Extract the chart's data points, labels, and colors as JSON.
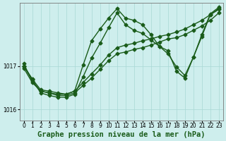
{
  "xlabel": "Graphe pression niveau de la mer (hPa)",
  "ylim": [
    1015.75,
    1018.45
  ],
  "xlim": [
    -0.5,
    23.5
  ],
  "yticks": [
    1016,
    1017
  ],
  "xticks": [
    0,
    1,
    2,
    3,
    4,
    5,
    6,
    7,
    8,
    9,
    10,
    11,
    12,
    13,
    14,
    15,
    16,
    17,
    18,
    19,
    20,
    21,
    22,
    23
  ],
  "xtick_labels": [
    "0",
    "1",
    "2",
    "3",
    "4",
    "5",
    "6",
    "7",
    "8",
    "9",
    "10",
    "11",
    "12",
    "13",
    "14",
    "15",
    "16",
    "17",
    "18",
    "19",
    "20",
    "21",
    "22",
    "23"
  ],
  "bg_color": "#ceeeed",
  "grid_color": "#a8d8d4",
  "line_color": "#1a5c1a",
  "series": [
    [
      1017.0,
      1016.7,
      null,
      null,
      null,
      null,
      null,
      null,
      null,
      null,
      null,
      null,
      null,
      null,
      null,
      null,
      null,
      null,
      null,
      null,
      null,
      null,
      null,
      null
    ],
    [
      1016.95,
      1016.62,
      1016.42,
      1016.38,
      1016.32,
      1016.32,
      1016.38,
      1016.55,
      1016.72,
      1016.92,
      1017.12,
      1017.28,
      1017.32,
      1017.38,
      1017.42,
      1017.48,
      1017.55,
      1017.62,
      1017.65,
      1017.72,
      1017.82,
      1017.92,
      1018.05,
      1018.22
    ],
    [
      1017.05,
      1016.65,
      1016.42,
      1016.38,
      1016.35,
      1016.35,
      1016.42,
      1016.62,
      1016.82,
      1017.02,
      1017.25,
      1017.42,
      1017.48,
      1017.52,
      1017.58,
      1017.62,
      1017.68,
      1017.72,
      1017.78,
      1017.85,
      1017.95,
      1018.05,
      1018.18,
      1018.3
    ],
    [
      1017.0,
      1016.68,
      1016.38,
      1016.32,
      1016.28,
      1016.28,
      1016.35,
      1016.75,
      1017.18,
      1017.52,
      1017.88,
      1018.22,
      1017.95,
      1017.82,
      1017.75,
      1017.6,
      1017.45,
      1017.35,
      1016.88,
      1016.72,
      1017.2,
      1017.68,
      1018.18,
      1018.32
    ]
  ],
  "series2_start": 6,
  "series_peak": [
    1017.0,
    1016.7,
    1016.45,
    1016.42,
    1016.38,
    1016.35,
    1016.42,
    1017.02,
    1017.58,
    1017.85,
    1018.1,
    1018.32,
    1018.1,
    1018.05,
    1017.95,
    1017.72,
    1017.45,
    1017.28,
    1016.98,
    1016.78,
    1017.2,
    1017.72,
    1018.2,
    1018.35
  ],
  "title_fontsize": 7.5,
  "tick_fontsize": 5.5,
  "marker_size": 2.5,
  "line_width": 1.0
}
